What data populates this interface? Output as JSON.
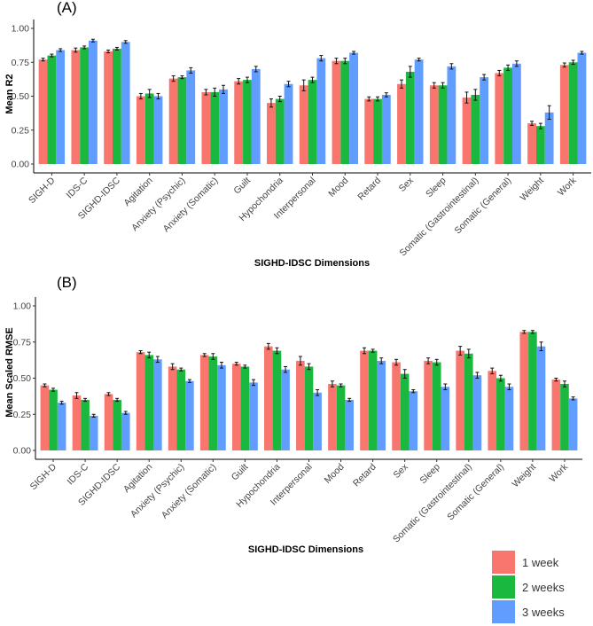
{
  "chart_data": [
    {
      "type": "bar",
      "panel_label": "(A)",
      "title": "",
      "xlabel": "SIGHD-IDSC Dimensions",
      "ylabel": "Mean R2",
      "ylim": [
        0,
        1.0
      ],
      "yticks": [
        "0.00",
        "0.25",
        "0.50",
        "0.75",
        "1.00"
      ],
      "grid": false,
      "categories": [
        "SIGH-D",
        "IDS-C",
        "SIGHD-IDSC",
        "Agitation",
        "Anxiety (Psychic)",
        "Anxiety (Somatic)",
        "Guilt",
        "Hypochondria",
        "Interpersonal",
        "Mood",
        "Retard",
        "Sex",
        "Sleep",
        "Somatic (Gastrointestinal)",
        "Somatic (General)",
        "Weight",
        "Work"
      ],
      "series": [
        {
          "name": "1 week",
          "color": "#f8766d",
          "values": [
            0.77,
            0.84,
            0.83,
            0.5,
            0.63,
            0.53,
            0.61,
            0.45,
            0.58,
            0.76,
            0.48,
            0.59,
            0.58,
            0.49,
            0.67,
            0.3,
            0.73
          ],
          "errors": [
            0.01,
            0.015,
            0.01,
            0.02,
            0.02,
            0.02,
            0.02,
            0.03,
            0.04,
            0.02,
            0.015,
            0.03,
            0.02,
            0.04,
            0.02,
            0.015,
            0.015
          ]
        },
        {
          "name": "2 weeks",
          "color": "#1ab83f",
          "values": [
            0.8,
            0.86,
            0.85,
            0.52,
            0.64,
            0.53,
            0.62,
            0.48,
            0.62,
            0.76,
            0.48,
            0.68,
            0.58,
            0.51,
            0.71,
            0.28,
            0.75
          ],
          "errors": [
            0.01,
            0.01,
            0.01,
            0.03,
            0.01,
            0.03,
            0.02,
            0.02,
            0.02,
            0.02,
            0.015,
            0.04,
            0.02,
            0.04,
            0.02,
            0.02,
            0.015
          ]
        },
        {
          "name": "3 weeks",
          "color": "#619cff",
          "values": [
            0.84,
            0.91,
            0.9,
            0.5,
            0.69,
            0.55,
            0.7,
            0.59,
            0.78,
            0.82,
            0.51,
            0.77,
            0.72,
            0.64,
            0.74,
            0.38,
            0.82
          ],
          "errors": [
            0.01,
            0.01,
            0.01,
            0.02,
            0.02,
            0.03,
            0.02,
            0.02,
            0.02,
            0.01,
            0.015,
            0.01,
            0.02,
            0.02,
            0.02,
            0.05,
            0.01
          ]
        }
      ]
    },
    {
      "type": "bar",
      "panel_label": "(B)",
      "title": "",
      "xlabel": "SIGHD-IDSC Dimensions",
      "ylabel": "Mean Scaled RMSE",
      "ylim": [
        0,
        1.0
      ],
      "yticks": [
        "0.00",
        "0.25",
        "0.50",
        "0.75",
        "1.00"
      ],
      "grid": false,
      "categories": [
        "SIGH-D",
        "IDS-C",
        "SIGHD-IDSC",
        "Agitation",
        "Anxiety (Psychic)",
        "Anxiety (Somatic)",
        "Guilt",
        "Hypochondria",
        "Interpersonal",
        "Mood",
        "Retard",
        "Sex",
        "Sleep",
        "Somatic (Gastrointestinal)",
        "Somatic (General)",
        "Weight",
        "Work"
      ],
      "series": [
        {
          "name": "1 week",
          "color": "#f8766d",
          "values": [
            0.45,
            0.38,
            0.39,
            0.68,
            0.58,
            0.66,
            0.6,
            0.72,
            0.62,
            0.46,
            0.69,
            0.61,
            0.62,
            0.69,
            0.55,
            0.82,
            0.49
          ],
          "errors": [
            0.01,
            0.02,
            0.01,
            0.01,
            0.02,
            0.01,
            0.01,
            0.02,
            0.03,
            0.02,
            0.02,
            0.02,
            0.02,
            0.03,
            0.02,
            0.01,
            0.01
          ]
        },
        {
          "name": "2 weeks",
          "color": "#1ab83f",
          "values": [
            0.42,
            0.35,
            0.35,
            0.66,
            0.56,
            0.65,
            0.58,
            0.69,
            0.58,
            0.45,
            0.69,
            0.53,
            0.61,
            0.67,
            0.5,
            0.82,
            0.46
          ],
          "errors": [
            0.01,
            0.01,
            0.01,
            0.02,
            0.01,
            0.02,
            0.01,
            0.02,
            0.02,
            0.01,
            0.01,
            0.03,
            0.02,
            0.03,
            0.02,
            0.01,
            0.02
          ]
        },
        {
          "name": "3 weeks",
          "color": "#619cff",
          "values": [
            0.33,
            0.24,
            0.26,
            0.63,
            0.48,
            0.59,
            0.47,
            0.56,
            0.4,
            0.35,
            0.62,
            0.41,
            0.44,
            0.52,
            0.44,
            0.72,
            0.36
          ],
          "errors": [
            0.01,
            0.01,
            0.01,
            0.02,
            0.01,
            0.02,
            0.02,
            0.02,
            0.02,
            0.01,
            0.02,
            0.01,
            0.02,
            0.02,
            0.02,
            0.03,
            0.01
          ]
        }
      ]
    }
  ],
  "legend": {
    "placement": "bottom-right",
    "items": [
      {
        "label": "1 week",
        "color": "#f8766d"
      },
      {
        "label": "2 weeks",
        "color": "#1ab83f"
      },
      {
        "label": "3 weeks",
        "color": "#619cff"
      }
    ]
  }
}
